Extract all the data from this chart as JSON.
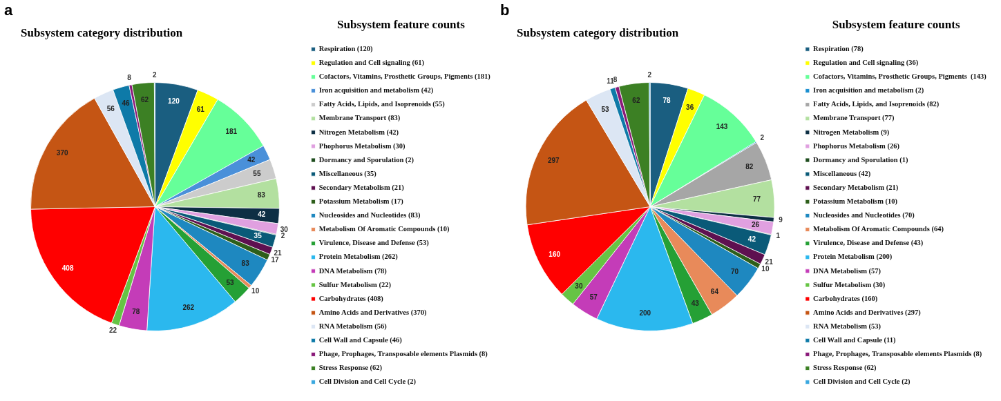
{
  "chart_data": [
    {
      "type": "pie",
      "title": "Subsystem category distribution",
      "legend_title": "Subsystem feature counts",
      "annotations": [
        "a"
      ],
      "legend": "right",
      "data_labels": true,
      "categories": [
        "Respiration (120)",
        "Regulation and Cell signaling (61)",
        "Cofactors, Vitamins, Prosthetic Groups, Pigments (181)",
        "Iron acquisition and metabolism (42)",
        "Fatty Acids, Lipids, and Isoprenoids (55)",
        "Membrane Transport (83)",
        "Nitrogen Metabolism (42)",
        "Phophorus Metabolism (30)",
        "Dormancy and Sporulation (2)",
        "Miscellaneous (35)",
        "Secondary Metabolism (21)",
        "Potassium Metabolism (17)",
        "Nucleosides and Nucleotides (83)",
        "Metabolism Of Aromatic Compounds (10)",
        "Virulence, Disease and Defense (53)",
        "Protein Metabolism (262)",
        "DNA Metabolism (78)",
        "Sulfur Metabolism (22)",
        "Carbohydrates (408)",
        "Amino Acids and Derivatives (370)",
        "RNA Metabolism (56)",
        "Cell Wall and Capsule (46)",
        "Phage, Prophages, Transposable elements Plasmids (8)",
        "Stress Response (62)",
        "Cell Division and Cell Cycle (2)"
      ],
      "values": [
        120,
        61,
        181,
        42,
        55,
        83,
        42,
        30,
        2,
        35,
        21,
        17,
        83,
        10,
        53,
        262,
        78,
        22,
        408,
        370,
        56,
        46,
        8,
        62,
        2
      ],
      "colors": [
        "#1a5e80",
        "#ffff00",
        "#66ff99",
        "#4a90d9",
        "#cccccc",
        "#b3e0a0",
        "#0d2f44",
        "#e0a0e0",
        "#1e4d1e",
        "#0a5a78",
        "#5e1050",
        "#2d5e1a",
        "#1e88c0",
        "#e88a5a",
        "#25a035",
        "#2bb8ee",
        "#c43cb8",
        "#66c444",
        "#ff0000",
        "#c55514",
        "#dce6f4",
        "#0e7aa8",
        "#8a1a7a",
        "#3c8024",
        "#3aa8e0"
      ]
    },
    {
      "type": "pie",
      "title": "Subsystem category distribution",
      "legend_title": "Subsystem feature counts",
      "annotations": [
        "b"
      ],
      "legend": "right",
      "data_labels": true,
      "categories": [
        "Respiration (78)",
        "Regulation and Cell signaling (36)",
        "Cofactors, Vitamins, Prosthetic Groups, Pigments  (143)",
        "Iron acquisition and metabolism (2)",
        "Fatty Acids, Lipids, and Isoprenoids (82)",
        "Membrane Transport (77)",
        "Nitrogen Metabolism (9)",
        "Phophorus Metabolism (26)",
        "Dormancy and Sporulation (1)",
        "Miscellaneous (42)",
        "Secondary Metabolism (21)",
        "Potassium Metabolism (10)",
        "Nucleosides and Nucleotides (70)",
        "Metabolism Of Aromatic Compounds (64)",
        "Virulence, Disease and Defense (43)",
        "Protein Metabolism (200)",
        "DNA Metabolism (57)",
        "Sulfur Metabolism (30)",
        "Carbohydrates (160)",
        "Amino Acids and Derivatives (297)",
        "RNA Metabolism (53)",
        "Cell Wall and Capsule (11)",
        "Phage, Prophages, Transposable elements Plasmids (8)",
        "Stress Response (62)",
        "Cell Division and Cell Cycle (2)"
      ],
      "values": [
        78,
        36,
        143,
        2,
        82,
        77,
        9,
        26,
        1,
        42,
        21,
        10,
        70,
        64,
        43,
        200,
        57,
        30,
        160,
        297,
        53,
        11,
        8,
        62,
        2
      ],
      "colors": [
        "#1a5e80",
        "#ffff00",
        "#66ff99",
        "#1a8fd0",
        "#a6a6a6",
        "#b3e0a0",
        "#0d2f44",
        "#e0a0e0",
        "#1e4d1e",
        "#0a5a78",
        "#5e1050",
        "#2d5e1a",
        "#1e88c0",
        "#e88a5a",
        "#25a035",
        "#2bb8ee",
        "#c43cb8",
        "#66c444",
        "#ff0000",
        "#c55514",
        "#dce6f4",
        "#0e7aa8",
        "#8a1a7a",
        "#3c8024",
        "#3aa8e0"
      ]
    }
  ]
}
